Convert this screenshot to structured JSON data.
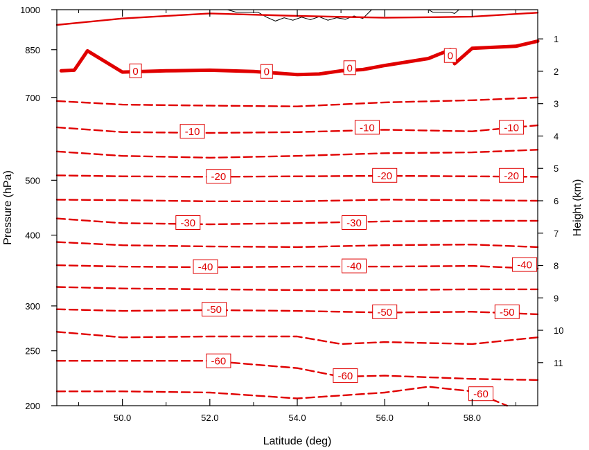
{
  "chart_data": {
    "type": "line",
    "title": "",
    "xlabel": "Latitude (deg)",
    "ylabel_left": "Pressure (hPa)",
    "ylabel_right": "Height (km)",
    "xlim": [
      48.5,
      59.5
    ],
    "x_ticks": [
      50.0,
      52.0,
      54.0,
      56.0,
      58.0
    ],
    "x_tick_labels": [
      "50.0",
      "52.0",
      "54.0",
      "56.0",
      "58.0"
    ],
    "pressure_range": [
      1000,
      200
    ],
    "pressure_axis_scale": "log",
    "pressure_ticks": [
      200,
      250,
      300,
      400,
      500,
      700,
      850,
      1000
    ],
    "pressure_tick_labels": [
      "200",
      "250",
      "300",
      "400",
      "500",
      "700",
      "850",
      "1000"
    ],
    "height_ticks": [
      1,
      2,
      3,
      4,
      5,
      6,
      7,
      8,
      9,
      10,
      11
    ],
    "height_tick_labels": [
      "1",
      "2",
      "3",
      "4",
      "5",
      "6",
      "7",
      "8",
      "9",
      "10",
      "11"
    ],
    "grid": false,
    "line_color": "#e00000",
    "terrain_color": "#000000",
    "contour_interval": 5,
    "series": [
      {
        "level": -60,
        "dashed": true,
        "x": [
          48.5,
          50.0,
          52.0,
          54.0,
          56.0,
          57.0,
          58.0,
          58.8
        ],
        "y": [
          212,
          212,
          211,
          206,
          211,
          216,
          212,
          200
        ]
      },
      {
        "level": -60,
        "dashed": true,
        "x": [
          48.5,
          50.0,
          52.0,
          54.0,
          55.0,
          56.0,
          58.0,
          59.5
        ],
        "y": [
          240,
          240,
          240,
          233,
          225,
          226,
          223,
          222
        ]
      },
      {
        "level": -55,
        "dashed": true,
        "x": [
          48.5,
          50.0,
          52.0,
          54.0,
          55.0,
          56.0,
          58.0,
          59.5
        ],
        "y": [
          270,
          264,
          265,
          265,
          257,
          259,
          257,
          264
        ]
      },
      {
        "level": -50,
        "dashed": true,
        "x": [
          48.5,
          50.0,
          52.0,
          54.0,
          56.0,
          58.0,
          59.5
        ],
        "y": [
          296,
          294,
          295,
          294,
          292,
          293,
          290
        ]
      },
      {
        "level": -45,
        "dashed": true,
        "x": [
          48.5,
          50.0,
          52.0,
          54.0,
          56.0,
          58.0,
          59.5
        ],
        "y": [
          324,
          322,
          321,
          320,
          320,
          321,
          321
        ]
      },
      {
        "level": -40,
        "dashed": true,
        "x": [
          48.5,
          50.0,
          52.0,
          54.0,
          56.0,
          58.0,
          59.5
        ],
        "y": [
          354,
          352,
          351,
          352,
          352,
          353,
          349
        ]
      },
      {
        "level": -35,
        "dashed": true,
        "x": [
          48.5,
          50.0,
          52.0,
          54.0,
          56.0,
          58.0,
          59.5
        ],
        "y": [
          389,
          384,
          382,
          381,
          384,
          385,
          381
        ]
      },
      {
        "level": -30,
        "dashed": true,
        "x": [
          48.5,
          50.0,
          52.0,
          54.0,
          56.0,
          58.0,
          59.5
        ],
        "y": [
          428,
          420,
          418,
          420,
          423,
          424,
          424
        ]
      },
      {
        "level": -25,
        "dashed": true,
        "x": [
          48.5,
          50.0,
          52.0,
          54.0,
          56.0,
          58.0,
          59.5
        ],
        "y": [
          462,
          461,
          459,
          459,
          462,
          461,
          460
        ]
      },
      {
        "level": -20,
        "dashed": true,
        "x": [
          48.5,
          50.0,
          52.0,
          54.0,
          56.0,
          58.0,
          59.5
        ],
        "y": [
          510,
          508,
          507,
          508,
          509,
          508,
          507
        ]
      },
      {
        "level": -15,
        "dashed": true,
        "x": [
          48.5,
          50.0,
          52.0,
          54.0,
          56.0,
          58.0,
          59.5
        ],
        "y": [
          562,
          552,
          548,
          552,
          558,
          560,
          566
        ]
      },
      {
        "level": -10,
        "dashed": true,
        "x": [
          48.5,
          50.0,
          52.0,
          54.0,
          56.0,
          58.0,
          59.5
        ],
        "y": [
          620,
          608,
          606,
          608,
          614,
          610,
          625
        ]
      },
      {
        "level": -5,
        "dashed": true,
        "x": [
          48.5,
          50.0,
          52.0,
          54.0,
          56.0,
          58.0,
          59.5
        ],
        "y": [
          690,
          680,
          677,
          675,
          686,
          692,
          700
        ]
      },
      {
        "level": 0,
        "dashed": false,
        "bold": true,
        "x": [
          48.6,
          48.9,
          49.2,
          50.0,
          51.0,
          52.0,
          53.0,
          54.0,
          54.5,
          55.0,
          55.5,
          56.0,
          57.0,
          57.5,
          57.6,
          58.0,
          59.0,
          59.5
        ],
        "y": [
          780,
          782,
          846,
          776,
          780,
          782,
          778,
          768,
          770,
          780,
          784,
          797,
          820,
          850,
          803,
          855,
          862,
          880
        ]
      },
      {
        "level": 5,
        "dashed": false,
        "x": [
          48.5,
          50.0,
          52.0,
          54.0,
          56.0,
          58.0,
          59.5
        ],
        "y": [
          940,
          965,
          985,
          975,
          968,
          972,
          988
        ]
      }
    ],
    "contour_labels": [
      {
        "text": "-60",
        "x": 52.2,
        "y": 240
      },
      {
        "text": "-60",
        "x": 55.1,
        "y": 226
      },
      {
        "text": "-60",
        "x": 58.2,
        "y": 210
      },
      {
        "text": "-50",
        "x": 52.1,
        "y": 296
      },
      {
        "text": "-50",
        "x": 56.0,
        "y": 293
      },
      {
        "text": "-50",
        "x": 58.8,
        "y": 293
      },
      {
        "text": "-40",
        "x": 51.9,
        "y": 352
      },
      {
        "text": "-40",
        "x": 55.3,
        "y": 353
      },
      {
        "text": "-40",
        "x": 59.2,
        "y": 355
      },
      {
        "text": "-30",
        "x": 51.5,
        "y": 421
      },
      {
        "text": "-30",
        "x": 55.3,
        "y": 421
      },
      {
        "text": "-20",
        "x": 52.2,
        "y": 508
      },
      {
        "text": "-20",
        "x": 56.0,
        "y": 510
      },
      {
        "text": "-20",
        "x": 58.9,
        "y": 510
      },
      {
        "text": "-10",
        "x": 51.6,
        "y": 610
      },
      {
        "text": "-10",
        "x": 55.6,
        "y": 620
      },
      {
        "text": "-10",
        "x": 58.9,
        "y": 620
      },
      {
        "text": "0",
        "x": 50.3,
        "y": 780
      },
      {
        "text": "0",
        "x": 53.3,
        "y": 778
      },
      {
        "text": "0",
        "x": 55.2,
        "y": 790
      },
      {
        "text": "0",
        "x": 57.5,
        "y": 830
      }
    ],
    "terrain": [
      {
        "x": [
          52.4,
          52.6,
          53.1,
          53.3,
          53.5,
          53.7,
          53.9,
          54.1,
          54.3,
          54.5,
          54.7,
          54.9,
          55.1,
          55.3,
          55.5,
          55.7
        ],
        "y": [
          1000,
          990,
          990,
          970,
          955,
          968,
          958,
          970,
          960,
          972,
          958,
          968,
          962,
          975,
          965,
          1000
        ]
      },
      {
        "x": [
          57.0,
          57.1,
          57.5,
          57.6,
          57.7
        ],
        "y": [
          1000,
          990,
          990,
          985,
          1000
        ]
      }
    ]
  }
}
